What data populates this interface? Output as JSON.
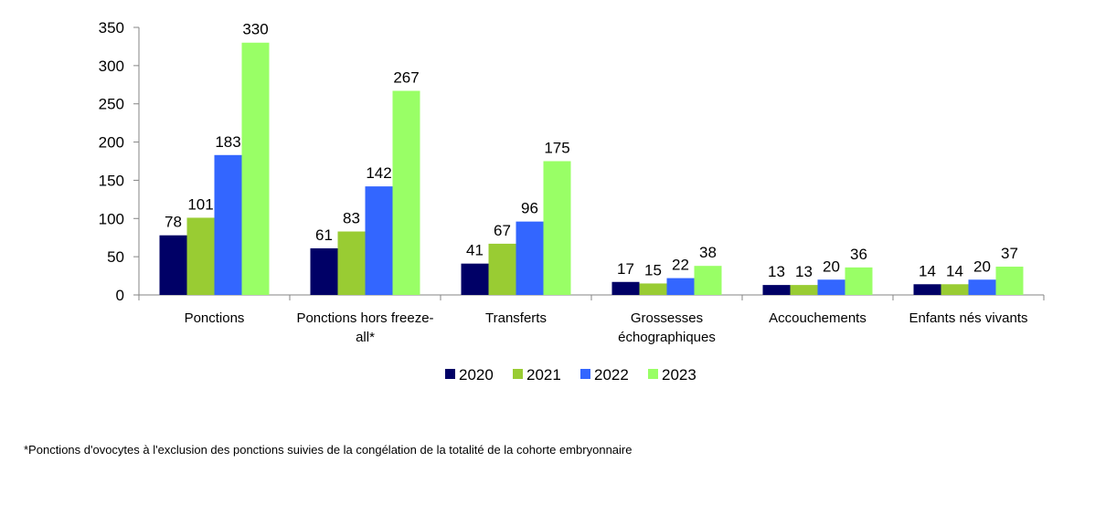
{
  "chart_data": {
    "type": "bar",
    "categories": [
      "Ponctions",
      "Ponctions hors freeze-all*",
      "Transferts",
      "Grossesses échographiques",
      "Accouchements",
      "Enfants nés vivants"
    ],
    "category_label_lines": [
      [
        "Ponctions"
      ],
      [
        "Ponctions hors freeze-",
        "all*"
      ],
      [
        "Transferts"
      ],
      [
        "Grossesses",
        "échographiques"
      ],
      [
        "Accouchements"
      ],
      [
        "Enfants nés vivants"
      ]
    ],
    "series": [
      {
        "name": "2020",
        "values": [
          78,
          61,
          41,
          17,
          13,
          14
        ],
        "color": "#000066"
      },
      {
        "name": "2021",
        "values": [
          101,
          83,
          67,
          15,
          13,
          14
        ],
        "color": "#99CC33"
      },
      {
        "name": "2022",
        "values": [
          183,
          142,
          96,
          22,
          20,
          20
        ],
        "color": "#3366FF"
      },
      {
        "name": "2023",
        "values": [
          330,
          267,
          175,
          38,
          36,
          37
        ],
        "color": "#99FF66"
      }
    ],
    "ylim": [
      0,
      350
    ],
    "yticks": [
      0,
      50,
      100,
      150,
      200,
      250,
      300,
      350
    ],
    "data_labels": true,
    "grid": false,
    "legend_position": "bottom"
  },
  "footnote": "*Ponctions d'ovocytes à l'exclusion des ponctions suivies de la congélation de la totalité de la cohorte embryonnaire"
}
